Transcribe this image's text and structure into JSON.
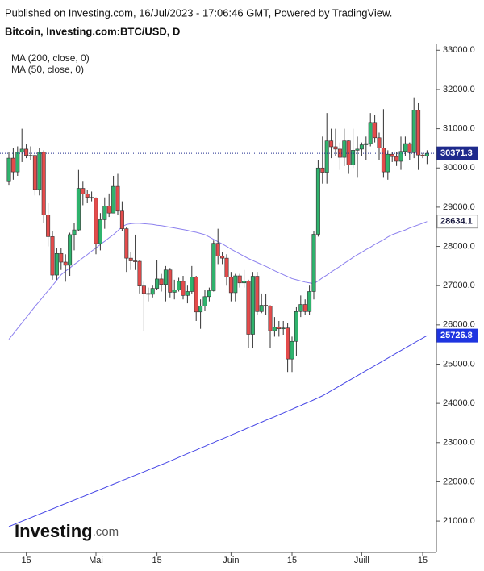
{
  "chart_data": {
    "type": "candlestick",
    "source": "Published on Investing.com, 16/Jul/2023 - 17:06:46 GMT, Powered by TradingView.",
    "title": "Bitcoin, Investing.com:BTC/USD, D",
    "logo": {
      "name": "Investing",
      "suffix": ".com"
    },
    "up_color": "#2fb36d",
    "down_color": "#e44b4b",
    "last_line_color": "#1e2a8c",
    "categories": [
      null,
      null,
      null,
      null,
      "15",
      null,
      null,
      null,
      null,
      null,
      null,
      null,
      null,
      null,
      null,
      null,
      null,
      null,
      null,
      null,
      "Mai",
      null,
      null,
      null,
      null,
      null,
      null,
      null,
      null,
      null,
      null,
      null,
      null,
      null,
      "15",
      null,
      null,
      null,
      null,
      null,
      null,
      null,
      null,
      null,
      null,
      null,
      null,
      null,
      null,
      null,
      null,
      "Juin",
      null,
      null,
      null,
      null,
      null,
      null,
      null,
      null,
      null,
      null,
      null,
      null,
      null,
      "15",
      null,
      null,
      null,
      null,
      null,
      null,
      null,
      null,
      null,
      null,
      null,
      null,
      null,
      null,
      null,
      "Juill",
      null,
      null,
      null,
      null,
      null,
      null,
      null,
      null,
      null,
      null,
      null,
      null,
      null,
      "15",
      null
    ],
    "open": [
      29650,
      30250,
      29900,
      30400,
      30480,
      30320,
      30320,
      29450,
      30400,
      28800,
      28250,
      27270,
      27820,
      27600,
      27520,
      28300,
      28420,
      29480,
      29340,
      29250,
      29230,
      28070,
      28680,
      29030,
      28850,
      29530,
      28900,
      28450,
      27700,
      27630,
      27620,
      26990,
      26800,
      26780,
      26930,
      27170,
      27030,
      27400,
      26830,
      26890,
      27110,
      26750,
      26850,
      27220,
      26330,
      26480,
      26720,
      26870,
      28080,
      27750,
      27700,
      27220,
      26820,
      27250,
      27070,
      27120,
      25760,
      27240,
      26340,
      26500,
      26480,
      25850,
      25940,
      25900,
      25920,
      25130,
      25580,
      26340,
      26520,
      26340,
      26850,
      28310,
      30000,
      29890,
      30690,
      30540,
      30480,
      30270,
      30690,
      30080,
      30450,
      30480,
      30590,
      30620,
      31160,
      30770,
      30510,
      29900,
      30350,
      30290,
      30170,
      30420,
      30620,
      30390,
      31470,
      30330,
      30300
    ],
    "high": [
      30400,
      30500,
      30550,
      31000,
      30600,
      30550,
      30350,
      30500,
      30450,
      29100,
      28400,
      27950,
      27950,
      27800,
      28350,
      28600,
      29950,
      29650,
      29450,
      29400,
      29250,
      28850,
      29250,
      29350,
      29800,
      29850,
      29150,
      28500,
      27850,
      28300,
      27650,
      27100,
      26950,
      27000,
      27650,
      27300,
      27500,
      27450,
      27150,
      27200,
      27250,
      27000,
      27500,
      27250,
      26650,
      26900,
      26950,
      28150,
      28450,
      27850,
      27800,
      27350,
      27300,
      27300,
      27400,
      27150,
      27350,
      27350,
      26800,
      26780,
      26500,
      26200,
      26100,
      26100,
      26050,
      25700,
      26450,
      26750,
      26650,
      27000,
      28400,
      30200,
      30800,
      31400,
      31000,
      31000,
      30650,
      31000,
      30700,
      31000,
      30800,
      30650,
      30800,
      31400,
      31350,
      30900,
      31500,
      30450,
      30400,
      30400,
      30800,
      30800,
      30650,
      31800,
      31650,
      30380,
      30450
    ],
    "low": [
      29550,
      29700,
      29800,
      30150,
      30250,
      30200,
      29300,
      29300,
      28600,
      28000,
      27150,
      27150,
      27400,
      27100,
      27250,
      27900,
      28400,
      29050,
      29100,
      29150,
      27800,
      27900,
      28450,
      28750,
      28850,
      28800,
      28400,
      27350,
      27400,
      27400,
      26800,
      25850,
      26600,
      26700,
      26900,
      26850,
      26600,
      26700,
      26650,
      26850,
      26650,
      26550,
      26800,
      26100,
      25900,
      26350,
      26600,
      26850,
      27550,
      27550,
      27000,
      26600,
      26600,
      26950,
      26950,
      25400,
      25400,
      26250,
      26300,
      26250,
      25400,
      25700,
      25700,
      25750,
      24800,
      24800,
      25200,
      26200,
      26250,
      26250,
      26650,
      28250,
      29600,
      29600,
      30250,
      30300,
      29950,
      30050,
      29850,
      30000,
      29750,
      30300,
      30200,
      30550,
      30650,
      30200,
      29750,
      29700,
      30150,
      30050,
      29950,
      30300,
      30200,
      30250,
      29950,
      30250,
      30100
    ],
    "close": [
      30250,
      29900,
      30400,
      30480,
      30320,
      30320,
      29450,
      30400,
      28800,
      28250,
      27270,
      27820,
      27600,
      27520,
      28300,
      28420,
      29480,
      29340,
      29250,
      29230,
      28070,
      28680,
      29030,
      28850,
      29530,
      28900,
      28450,
      27700,
      27630,
      27620,
      26990,
      26800,
      26780,
      26930,
      27170,
      27030,
      27400,
      26830,
      26890,
      27110,
      26750,
      26850,
      27220,
      26330,
      26480,
      26720,
      26870,
      28080,
      27750,
      27700,
      27220,
      26820,
      27250,
      27070,
      27120,
      25760,
      27240,
      26340,
      26500,
      26480,
      25850,
      25940,
      25900,
      25920,
      25130,
      25580,
      26340,
      26520,
      26340,
      26850,
      28310,
      30000,
      29890,
      30690,
      30540,
      30480,
      30270,
      30690,
      30080,
      30450,
      30480,
      30590,
      30620,
      31160,
      30770,
      30510,
      29900,
      30350,
      30290,
      30170,
      30420,
      30620,
      30390,
      31470,
      30330,
      30300,
      30371.3
    ],
    "series": [
      {
        "name": "MA (200, close, 0)",
        "color": "#4646e6",
        "label_fill": "#1f35e0",
        "label_text": "#ffffff",
        "values": [
          20860,
          20905,
          20950,
          20995,
          21040,
          21085,
          21130,
          21175,
          21220,
          21265,
          21310,
          21355,
          21400,
          21445,
          21490,
          21535,
          21580,
          21625,
          21670,
          21715,
          21760,
          21805,
          21850,
          21895,
          21940,
          21985,
          22030,
          22075,
          22120,
          22165,
          22210,
          22255,
          22300,
          22345,
          22390,
          22435,
          22480,
          22530,
          22575,
          22625,
          22670,
          22720,
          22765,
          22810,
          22860,
          22905,
          22955,
          23000,
          23050,
          23095,
          23140,
          23190,
          23235,
          23285,
          23330,
          23380,
          23425,
          23475,
          23520,
          23570,
          23615,
          23660,
          23710,
          23755,
          23805,
          23850,
          23900,
          23945,
          23995,
          24040,
          24090,
          24140,
          24193,
          24257,
          24321,
          24385,
          24449,
          24513,
          24577,
          24641,
          24705,
          24769,
          24833,
          24897,
          24961,
          25025,
          25089,
          25153,
          25217,
          25281,
          25345,
          25409,
          25473,
          25537,
          25601,
          25665,
          25726.8
        ]
      },
      {
        "name": "MA (50, close, 0)",
        "color": "#8c80ee",
        "label_fill": "#ffffff",
        "label_text": "#1a1a40",
        "values": [
          25634,
          25770,
          25910,
          26050,
          26190,
          26330,
          26470,
          26600,
          26740,
          26870,
          27000,
          27140,
          27280,
          27370,
          27450,
          27540,
          27620,
          27710,
          27790,
          27880,
          27960,
          28050,
          28130,
          28220,
          28300,
          28400,
          28500,
          28560,
          28580,
          28590,
          28590,
          28580,
          28570,
          28560,
          28540,
          28530,
          28510,
          28490,
          28470,
          28450,
          28430,
          28410,
          28380,
          28360,
          28330,
          28300,
          28240,
          28180,
          28120,
          28060,
          28000,
          27930,
          27870,
          27810,
          27750,
          27690,
          27640,
          27590,
          27540,
          27490,
          27440,
          27380,
          27330,
          27280,
          27230,
          27180,
          27150,
          27120,
          27090,
          27070,
          27050,
          27120,
          27200,
          27270,
          27350,
          27420,
          27490,
          27570,
          27640,
          27720,
          27790,
          27850,
          27920,
          27980,
          28050,
          28110,
          28170,
          28240,
          28300,
          28340,
          28380,
          28420,
          28470,
          28510,
          28550,
          28590,
          28634.1
        ]
      }
    ],
    "ylim": [
      20200,
      33150
    ],
    "yticks": [
      {
        "value": 21000,
        "label": "21000.0"
      },
      {
        "value": 22000,
        "label": "22000.0"
      },
      {
        "value": 23000,
        "label": "23000.0"
      },
      {
        "value": 24000,
        "label": "24000.0"
      },
      {
        "value": 25000,
        "label": "25000.0"
      },
      {
        "value": 26000,
        "label": "26000.0"
      },
      {
        "value": 27000,
        "label": "27000.0"
      },
      {
        "value": 28000,
        "label": "28000.0"
      },
      {
        "value": 29000,
        "label": "29000.0"
      },
      {
        "value": 30000,
        "label": "30000.0"
      },
      {
        "value": 31000,
        "label": "31000.0"
      },
      {
        "value": 32000,
        "label": "32000.0"
      },
      {
        "value": 33000,
        "label": "33000.0"
      }
    ]
  }
}
